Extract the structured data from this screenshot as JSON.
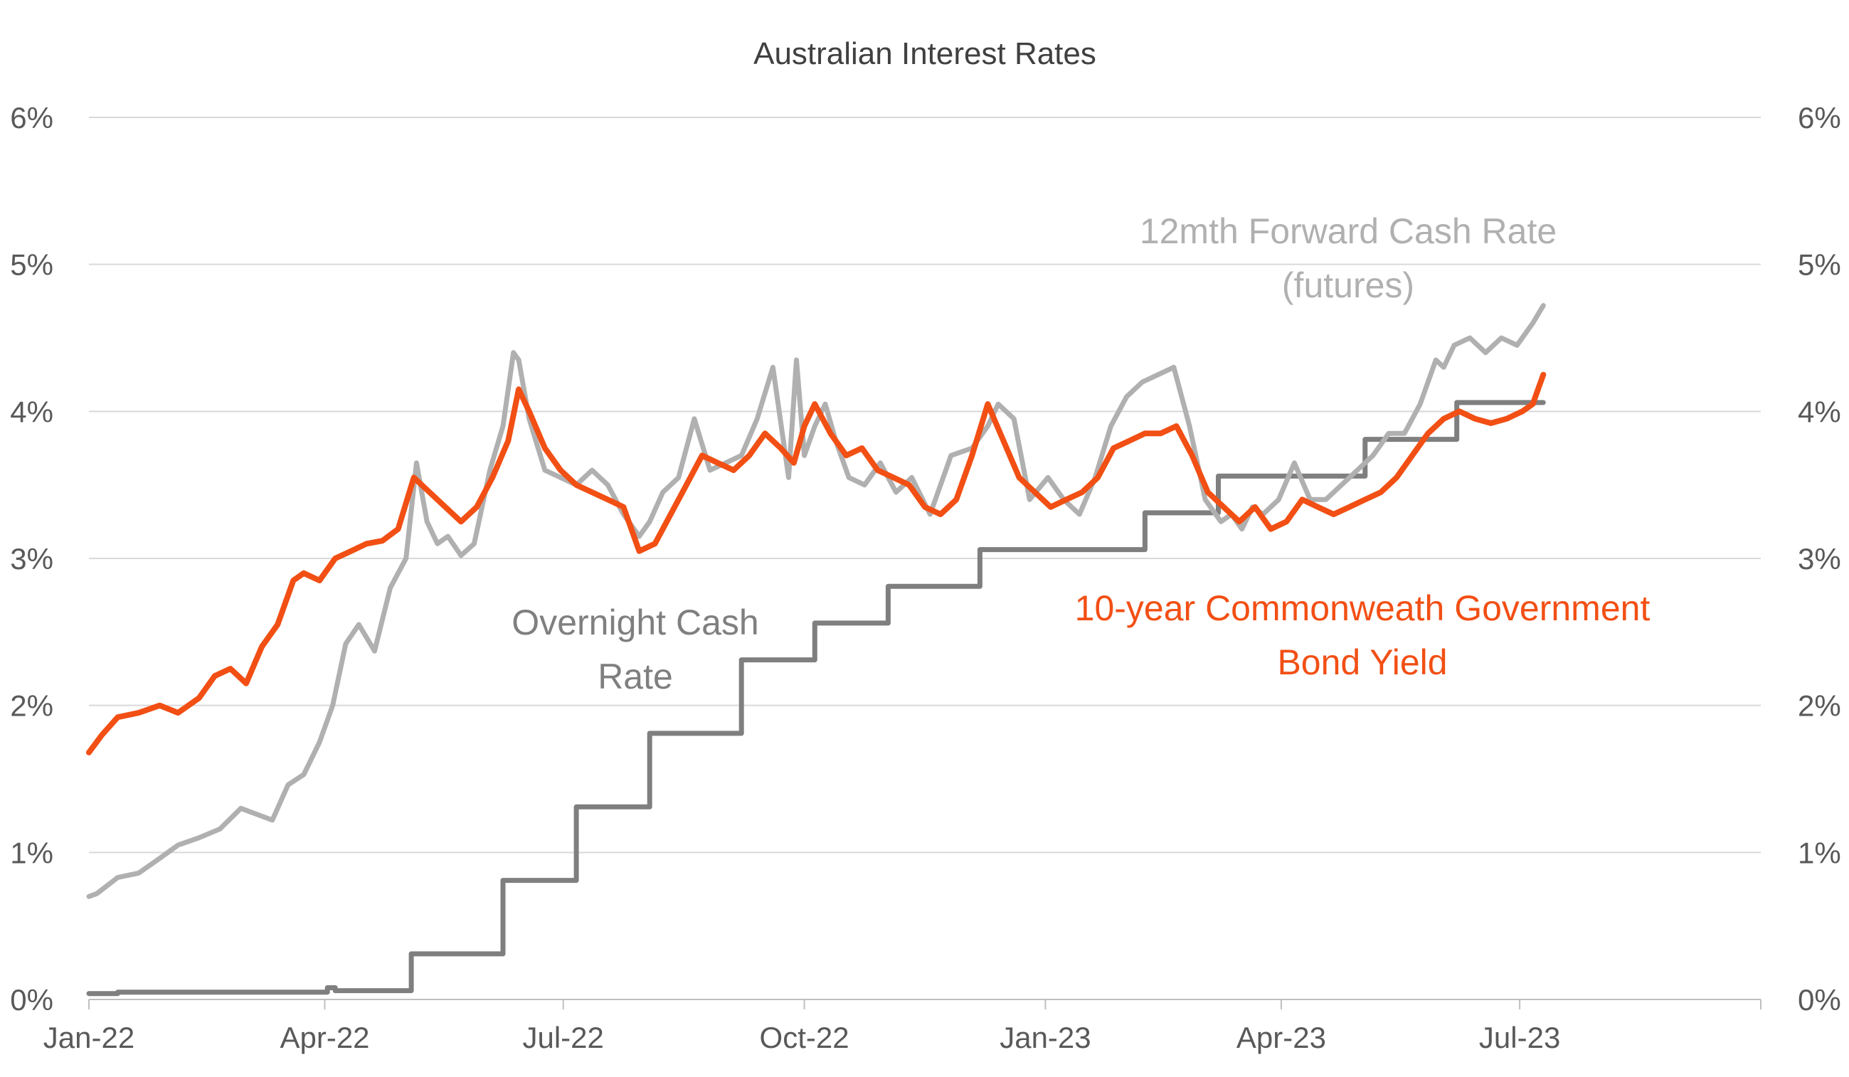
{
  "chart_data": {
    "type": "line",
    "title": "Australian Interest Rates",
    "xlabel": "",
    "ylabel": "",
    "ylim": [
      0,
      6
    ],
    "y_ticks": [
      "0%",
      "1%",
      "2%",
      "3%",
      "4%",
      "5%",
      "6%"
    ],
    "y2_ticks": [
      "0%",
      "1%",
      "2%",
      "3%",
      "4%",
      "5%",
      "6%"
    ],
    "x_ticks": [
      {
        "label": "Jan-22",
        "date": "2022-01-01"
      },
      {
        "label": "Apr-22",
        "date": "2022-04-01"
      },
      {
        "label": "Jul-22",
        "date": "2022-07-01"
      },
      {
        "label": "Oct-22",
        "date": "2022-10-01"
      },
      {
        "label": "Jan-23",
        "date": "2023-01-01"
      },
      {
        "label": "Apr-23",
        "date": "2023-04-01"
      },
      {
        "label": "Jul-23",
        "date": "2023-07-01"
      }
    ],
    "xlim": [
      "2022-01-01",
      "2023-10-01"
    ],
    "grid": true,
    "legend": "none",
    "annotations": [
      {
        "series": "forward",
        "lines": [
          "12mth Forward Cash Rate",
          "(futures)"
        ]
      },
      {
        "series": "bond",
        "lines": [
          "10-year Commonweath Government",
          "Bond Yield"
        ]
      },
      {
        "series": "cash",
        "lines": [
          "Overnight Cash",
          "Rate"
        ]
      }
    ],
    "colors": {
      "cash": "#7f7f7f",
      "forward": "#b0b0b0",
      "bond": "#f24f14",
      "grid": "#d9d9d9",
      "axis": "#bfbfbf"
    },
    "series": [
      {
        "key": "cash",
        "step": true,
        "x": [
          "2022-01-01",
          "2022-01-12",
          "2022-04-01",
          "2022-04-02",
          "2022-04-05",
          "2022-05-04",
          "2022-06-08",
          "2022-07-06",
          "2022-08-03",
          "2022-09-07",
          "2022-10-05",
          "2022-11-02",
          "2022-12-07",
          "2023-02-08",
          "2023-03-08",
          "2023-04-05",
          "2023-05-03",
          "2023-06-07",
          "2023-07-10"
        ],
        "values": [
          0.04,
          0.05,
          0.05,
          0.08,
          0.06,
          0.31,
          0.81,
          1.31,
          1.81,
          2.31,
          2.56,
          2.81,
          3.06,
          3.31,
          3.56,
          3.56,
          3.81,
          4.06,
          4.06
        ]
      },
      {
        "key": "forward",
        "x": [
          "2022-01-01",
          "2022-01-04",
          "2022-01-12",
          "2022-01-20",
          "2022-01-28",
          "2022-02-04",
          "2022-02-12",
          "2022-02-20",
          "2022-02-28",
          "2022-03-06",
          "2022-03-12",
          "2022-03-18",
          "2022-03-24",
          "2022-03-30",
          "2022-04-04",
          "2022-04-09",
          "2022-04-14",
          "2022-04-20",
          "2022-04-26",
          "2022-05-02",
          "2022-05-06",
          "2022-05-10",
          "2022-05-14",
          "2022-05-18",
          "2022-05-23",
          "2022-05-28",
          "2022-06-03",
          "2022-06-08",
          "2022-06-12",
          "2022-06-14",
          "2022-06-18",
          "2022-06-24",
          "2022-06-30",
          "2022-07-06",
          "2022-07-12",
          "2022-07-18",
          "2022-07-24",
          "2022-07-30",
          "2022-08-03",
          "2022-08-08",
          "2022-08-14",
          "2022-08-20",
          "2022-08-26",
          "2022-09-01",
          "2022-09-07",
          "2022-09-13",
          "2022-09-19",
          "2022-09-25",
          "2022-09-28",
          "2022-10-01",
          "2022-10-05",
          "2022-10-09",
          "2022-10-13",
          "2022-10-18",
          "2022-10-24",
          "2022-10-30",
          "2022-11-05",
          "2022-11-11",
          "2022-11-18",
          "2022-11-26",
          "2022-12-04",
          "2022-12-10",
          "2022-12-14",
          "2022-12-20",
          "2022-12-26",
          "2023-01-02",
          "2023-01-08",
          "2023-01-14",
          "2023-01-20",
          "2023-01-26",
          "2023-02-01",
          "2023-02-07",
          "2023-02-13",
          "2023-02-19",
          "2023-02-25",
          "2023-03-03",
          "2023-03-09",
          "2023-03-13",
          "2023-03-17",
          "2023-03-21",
          "2023-03-25",
          "2023-03-31",
          "2023-04-06",
          "2023-04-12",
          "2023-04-18",
          "2023-04-24",
          "2023-04-30",
          "2023-05-06",
          "2023-05-12",
          "2023-05-18",
          "2023-05-24",
          "2023-05-30",
          "2023-06-02",
          "2023-06-06",
          "2023-06-12",
          "2023-06-18",
          "2023-06-24",
          "2023-06-30",
          "2023-07-06",
          "2023-07-10"
        ],
        "values": [
          0.7,
          0.72,
          0.83,
          0.86,
          0.96,
          1.05,
          1.1,
          1.16,
          1.3,
          1.26,
          1.22,
          1.46,
          1.53,
          1.75,
          2.0,
          2.42,
          2.55,
          2.37,
          2.8,
          3.0,
          3.65,
          3.25,
          3.1,
          3.15,
          3.02,
          3.1,
          3.6,
          3.9,
          4.4,
          4.35,
          3.95,
          3.6,
          3.55,
          3.5,
          3.6,
          3.5,
          3.3,
          3.15,
          3.25,
          3.45,
          3.55,
          3.95,
          3.6,
          3.65,
          3.7,
          3.95,
          4.3,
          3.55,
          4.35,
          3.7,
          3.9,
          4.05,
          3.8,
          3.55,
          3.5,
          3.65,
          3.45,
          3.55,
          3.3,
          3.7,
          3.75,
          3.9,
          4.05,
          3.95,
          3.4,
          3.55,
          3.4,
          3.3,
          3.55,
          3.9,
          4.1,
          4.2,
          4.25,
          4.3,
          3.9,
          3.4,
          3.25,
          3.3,
          3.2,
          3.35,
          3.3,
          3.4,
          3.65,
          3.4,
          3.4,
          3.5,
          3.6,
          3.7,
          3.85,
          3.85,
          4.05,
          4.35,
          4.3,
          4.45,
          4.5,
          4.4,
          4.5,
          4.45,
          4.6,
          4.72
        ]
      },
      {
        "key": "bond",
        "x": [
          "2022-01-01",
          "2022-01-06",
          "2022-01-12",
          "2022-01-20",
          "2022-01-28",
          "2022-02-04",
          "2022-02-12",
          "2022-02-18",
          "2022-02-24",
          "2022-03-02",
          "2022-03-08",
          "2022-03-14",
          "2022-03-20",
          "2022-03-24",
          "2022-03-30",
          "2022-04-05",
          "2022-04-11",
          "2022-04-17",
          "2022-04-23",
          "2022-04-29",
          "2022-05-05",
          "2022-05-11",
          "2022-05-17",
          "2022-05-23",
          "2022-05-29",
          "2022-06-04",
          "2022-06-10",
          "2022-06-14",
          "2022-06-18",
          "2022-06-24",
          "2022-06-30",
          "2022-07-06",
          "2022-07-12",
          "2022-07-18",
          "2022-07-24",
          "2022-07-30",
          "2022-08-05",
          "2022-08-11",
          "2022-08-17",
          "2022-08-23",
          "2022-08-29",
          "2022-09-04",
          "2022-09-10",
          "2022-09-16",
          "2022-09-22",
          "2022-09-27",
          "2022-10-01",
          "2022-10-05",
          "2022-10-11",
          "2022-10-17",
          "2022-10-23",
          "2022-10-29",
          "2022-11-04",
          "2022-11-10",
          "2022-11-16",
          "2022-11-22",
          "2022-11-28",
          "2022-12-04",
          "2022-12-10",
          "2022-12-16",
          "2022-12-22",
          "2022-12-28",
          "2023-01-03",
          "2023-01-09",
          "2023-01-15",
          "2023-01-21",
          "2023-01-27",
          "2023-02-02",
          "2023-02-08",
          "2023-02-14",
          "2023-02-20",
          "2023-02-26",
          "2023-03-04",
          "2023-03-10",
          "2023-03-16",
          "2023-03-22",
          "2023-03-28",
          "2023-04-03",
          "2023-04-09",
          "2023-04-15",
          "2023-04-21",
          "2023-04-27",
          "2023-05-03",
          "2023-05-09",
          "2023-05-15",
          "2023-05-21",
          "2023-05-27",
          "2023-06-02",
          "2023-06-08",
          "2023-06-14",
          "2023-06-20",
          "2023-06-26",
          "2023-07-02",
          "2023-07-06",
          "2023-07-10"
        ],
        "values": [
          1.68,
          1.8,
          1.92,
          1.95,
          2.0,
          1.95,
          2.05,
          2.2,
          2.25,
          2.15,
          2.4,
          2.55,
          2.85,
          2.9,
          2.85,
          3.0,
          3.05,
          3.1,
          3.12,
          3.2,
          3.55,
          3.45,
          3.35,
          3.25,
          3.35,
          3.55,
          3.8,
          4.15,
          4.0,
          3.75,
          3.6,
          3.5,
          3.45,
          3.4,
          3.35,
          3.05,
          3.1,
          3.3,
          3.5,
          3.7,
          3.65,
          3.6,
          3.7,
          3.85,
          3.75,
          3.65,
          3.9,
          4.05,
          3.85,
          3.7,
          3.75,
          3.6,
          3.55,
          3.5,
          3.35,
          3.3,
          3.4,
          3.7,
          4.05,
          3.8,
          3.55,
          3.45,
          3.35,
          3.4,
          3.45,
          3.55,
          3.75,
          3.8,
          3.85,
          3.85,
          3.9,
          3.7,
          3.45,
          3.35,
          3.25,
          3.35,
          3.2,
          3.25,
          3.4,
          3.35,
          3.3,
          3.35,
          3.4,
          3.45,
          3.55,
          3.7,
          3.85,
          3.95,
          4.0,
          3.95,
          3.92,
          3.95,
          4.0,
          4.05,
          4.25
        ]
      }
    ]
  }
}
